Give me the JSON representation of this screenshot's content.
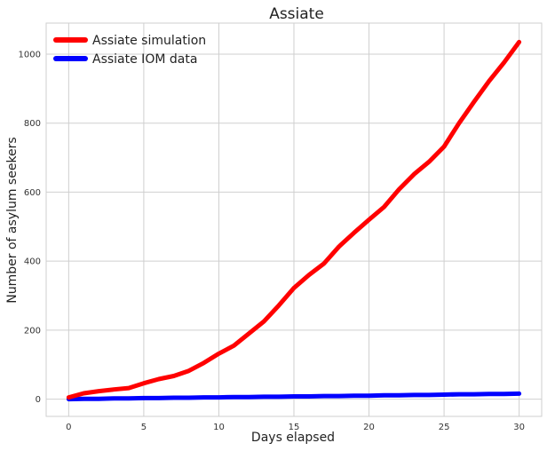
{
  "chart_data": {
    "type": "line",
    "title": "Assiate",
    "xlabel": "Days elapsed",
    "ylabel": "Number of asylum seekers",
    "xlim": [
      -1.5,
      31.5
    ],
    "ylim": [
      -50,
      1090
    ],
    "xticks": [
      0,
      5,
      10,
      15,
      20,
      25,
      30
    ],
    "yticks": [
      0,
      200,
      400,
      600,
      800,
      1000
    ],
    "grid": true,
    "legend_position": "top-left",
    "x": [
      0,
      1,
      2,
      3,
      4,
      5,
      6,
      7,
      8,
      9,
      10,
      11,
      12,
      13,
      14,
      15,
      16,
      17,
      18,
      19,
      20,
      21,
      22,
      23,
      24,
      25,
      26,
      27,
      28,
      29,
      30
    ],
    "series": [
      {
        "name": "Assiate simulation",
        "color": "#ff0000",
        "values": [
          5,
          17,
          23,
          28,
          32,
          46,
          58,
          67,
          82,
          105,
          132,
          155,
          190,
          225,
          272,
          322,
          360,
          393,
          442,
          482,
          520,
          557,
          608,
          652,
          688,
          732,
          800,
          862,
          922,
          976,
          1035
        ]
      },
      {
        "name": "Assiate IOM data",
        "color": "#0000ff",
        "values": [
          0,
          1,
          1,
          2,
          2,
          3,
          3,
          4,
          4,
          5,
          5,
          6,
          6,
          7,
          7,
          8,
          8,
          9,
          9,
          10,
          10,
          11,
          11,
          12,
          12,
          13,
          14,
          14,
          15,
          15,
          16
        ]
      }
    ]
  }
}
